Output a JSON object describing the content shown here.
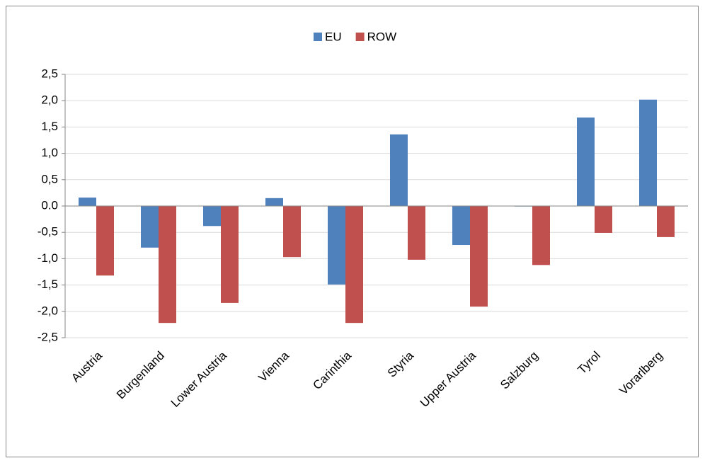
{
  "chart_data": {
    "type": "bar",
    "categories": [
      "Austria",
      "Burgenland",
      "Lower Austria",
      "Vienna",
      "Carinthia",
      "Styria",
      "Upper Austria",
      "Salzburg",
      "Tyrol",
      "Vorarlberg"
    ],
    "series": [
      {
        "name": "EU",
        "color": "#4f81bd",
        "values": [
          0.16,
          -0.79,
          -0.38,
          0.15,
          -1.49,
          1.36,
          -0.74,
          -0.01,
          1.68,
          2.02
        ]
      },
      {
        "name": "ROW",
        "color": "#c0504d",
        "values": [
          -1.32,
          -2.22,
          -1.84,
          -0.97,
          -2.22,
          -1.02,
          -1.91,
          -1.12,
          -0.51,
          -0.59
        ]
      }
    ],
    "ylim": [
      -2.5,
      2.5
    ],
    "yticks": [
      {
        "value": -2.5,
        "label": "-2,5"
      },
      {
        "value": -2,
        "label": "-2,0"
      },
      {
        "value": -1.5,
        "label": "-1,5"
      },
      {
        "value": -1,
        "label": "-1,0"
      },
      {
        "value": -0.5,
        "label": "-0,5"
      },
      {
        "value": 0,
        "label": "0.0"
      },
      {
        "value": 0.5,
        "label": "0,5"
      },
      {
        "value": 1,
        "label": "1,0"
      },
      {
        "value": 1.5,
        "label": "1,5"
      },
      {
        "value": 2,
        "label": "2,0"
      },
      {
        "value": 2.5,
        "label": "2,5"
      }
    ],
    "grid": true,
    "legend": "top"
  }
}
